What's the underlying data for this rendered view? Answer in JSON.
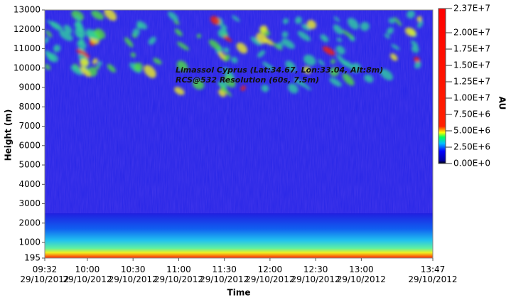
{
  "chart_data": {
    "type": "heatmap",
    "title": "Limassol Cyprus (Lat:34.67, Lon:33.04, Alt:8m)",
    "subtitle": "RCS@532 Resolution (60s, 7.5m)",
    "x_label": "Time",
    "y_label": "Height (m)",
    "colorbar_label": "AU",
    "xlim": [
      572,
      827
    ],
    "xticks": [
      {
        "value": 572,
        "label": "09:32\n29/10/2012"
      },
      {
        "value": 600,
        "label": "10:00\n29/10/2012"
      },
      {
        "value": 630,
        "label": "10:30\n29/10/2012"
      },
      {
        "value": 660,
        "label": "11:00\n29/10/2012"
      },
      {
        "value": 690,
        "label": "11:30\n29/10/2012"
      },
      {
        "value": 720,
        "label": "12:00\n29/10/2012"
      },
      {
        "value": 750,
        "label": "12:30\n29/10/2012"
      },
      {
        "value": 780,
        "label": "13:00\n29/10/2012"
      },
      {
        "value": 827,
        "label": "13:47\n29/10/2012"
      }
    ],
    "ylim": [
      195,
      13000
    ],
    "yticks": [
      195,
      1000,
      2000,
      3000,
      4000,
      5000,
      6000,
      7000,
      8000,
      9000,
      10000,
      11000,
      12000,
      13000
    ],
    "clim": [
      0,
      23700000
    ],
    "cticks": [
      {
        "value": 0,
        "label": "0.00E+0"
      },
      {
        "value": 2500000,
        "label": "2.50E+6"
      },
      {
        "value": 5000000,
        "label": "5.00E+6"
      },
      {
        "value": 7500000,
        "label": "7.50E+6"
      },
      {
        "value": 10000000,
        "label": "1.00E+7"
      },
      {
        "value": 12500000,
        "label": "1.25E+7"
      },
      {
        "value": 15000000,
        "label": "1.50E+7"
      },
      {
        "value": 17500000,
        "label": "1.75E+7"
      },
      {
        "value": 20000000,
        "label": "2.00E+7"
      },
      {
        "value": 23700000,
        "label": "2.37E+7"
      }
    ]
  }
}
